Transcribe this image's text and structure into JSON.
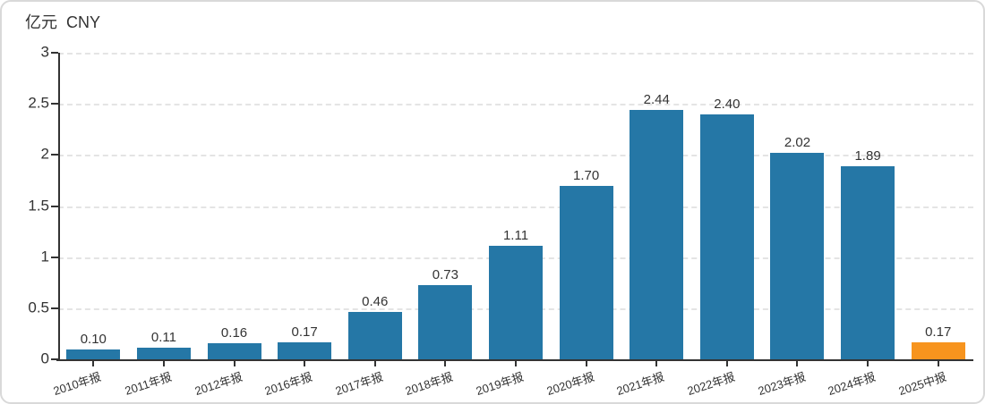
{
  "chart": {
    "title": "亿元  CNY"
  },
  "chart_data": {
    "type": "bar",
    "title": "亿元 CNY",
    "xlabel": "",
    "ylabel": "亿元 CNY",
    "ylim": [
      0,
      3
    ],
    "yticks": [
      0,
      0.5,
      1,
      1.5,
      2,
      2.5,
      3
    ],
    "ytick_labels": [
      "0",
      "0.5",
      "1",
      "1.5",
      "2",
      "2.5",
      "3"
    ],
    "grid": "horizontal-dashed",
    "legend_position": "none",
    "categories": [
      "2010年报",
      "2011年报",
      "2012年报",
      "2016年报",
      "2017年报",
      "2018年报",
      "2019年报",
      "2020年报",
      "2021年报",
      "2022年报",
      "2023年报",
      "2024年报",
      "2025中报"
    ],
    "values": [
      0.1,
      0.11,
      0.16,
      0.17,
      0.46,
      0.73,
      1.11,
      1.7,
      2.44,
      2.4,
      2.02,
      1.89,
      0.17
    ],
    "value_labels": [
      "0.10",
      "0.11",
      "0.16",
      "0.17",
      "0.46",
      "0.73",
      "1.11",
      "1.70",
      "2.44",
      "2.40",
      "2.02",
      "1.89",
      "0.17"
    ],
    "colors": {
      "bar_default": "#2577a6",
      "bar_highlight_last": "#f7941e",
      "axis": "#333333",
      "gridline": "#e4e4e4",
      "label_text": "#333333",
      "border": "#d9d9d9"
    }
  }
}
